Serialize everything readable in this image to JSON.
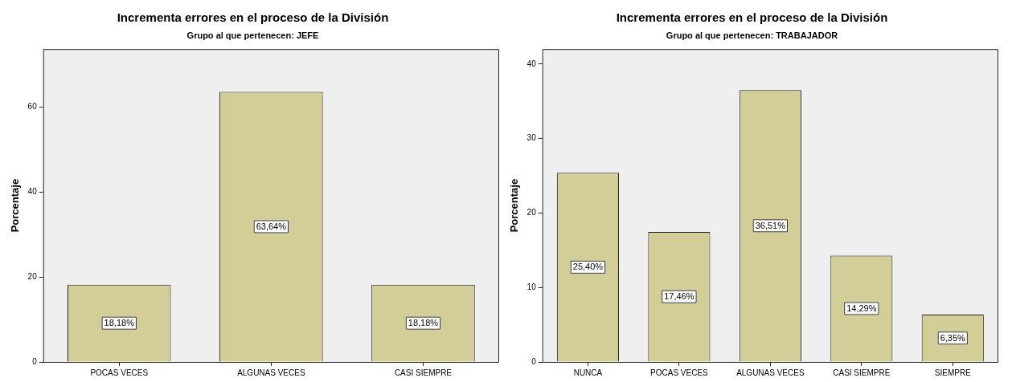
{
  "chart_data": [
    {
      "type": "bar",
      "title": "Incrementa errores en el proceso de la División",
      "subtitle": "Grupo al que pertenecen: JEFE",
      "ylabel": "Porcentaje",
      "categories": [
        "POCAS VECES",
        "ALGUNAS VECES",
        "CASI SIEMPRE"
      ],
      "values": [
        18.18,
        63.64,
        18.18
      ],
      "value_labels": [
        "18,18%",
        "63,64%",
        "18,18%"
      ],
      "color": "#d3ce97",
      "ylim": [
        0,
        73.7
      ],
      "yticks": [
        0,
        20,
        40,
        60
      ],
      "grid": false
    },
    {
      "type": "bar",
      "title": "Incrementa errores en el proceso de la División",
      "subtitle": "Grupo al que pertenecen: TRABAJADOR",
      "ylabel": "Porcentaje",
      "categories": [
        "NUNCA",
        "POCAS VECES",
        "ALGUNAS VECES",
        "CASI SIEMPRE",
        "SIEMPRE"
      ],
      "values": [
        25.4,
        17.46,
        36.51,
        14.29,
        6.35
      ],
      "value_labels": [
        "25,40%",
        "17,46%",
        "36,51%",
        "14,29%",
        "6,35%"
      ],
      "color": "#d3ce97",
      "ylim": [
        0,
        42
      ],
      "yticks": [
        0,
        10,
        20,
        30,
        40
      ],
      "grid": false
    }
  ]
}
